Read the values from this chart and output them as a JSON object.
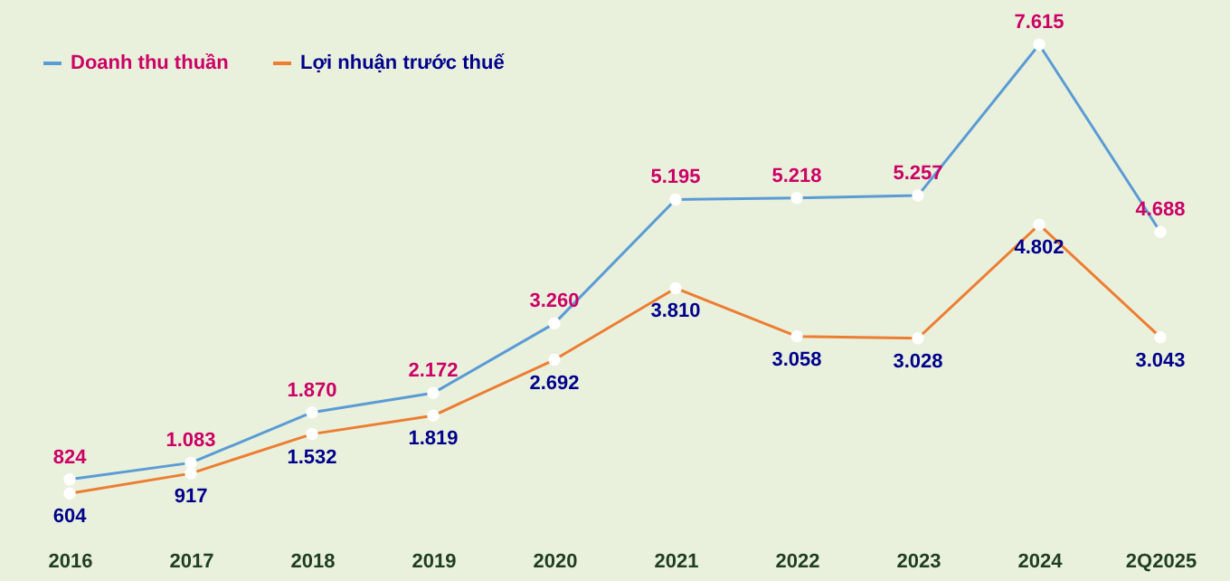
{
  "chart_data": {
    "type": "line",
    "categories": [
      "2016",
      "2017",
      "2018",
      "2019",
      "2020",
      "2021",
      "2022",
      "2023",
      "2024",
      "2Q2025"
    ],
    "series": [
      {
        "name": "Doanh thu thuần",
        "color": "#5b9bd5",
        "values": [
          824,
          1083,
          1870,
          2172,
          3260,
          5195,
          5218,
          5257,
          7615,
          4688
        ],
        "value_labels": [
          "824",
          "1.083",
          "1.870",
          "2.172",
          "3.260",
          "5.195",
          "5.218",
          "5.257",
          "7.615",
          "4.688"
        ]
      },
      {
        "name": "Lợi nhuận trước thuế",
        "color": "#ed7d31",
        "values": [
          604,
          917,
          1532,
          1819,
          2692,
          3810,
          3058,
          3028,
          4802,
          3043
        ],
        "value_labels": [
          "604",
          "917",
          "1.532",
          "1.819",
          "2.692",
          "3.810",
          "3.058",
          "3.028",
          "4.802",
          "3.043"
        ]
      }
    ],
    "legend": "top left",
    "marker": "circle",
    "grid": false
  }
}
